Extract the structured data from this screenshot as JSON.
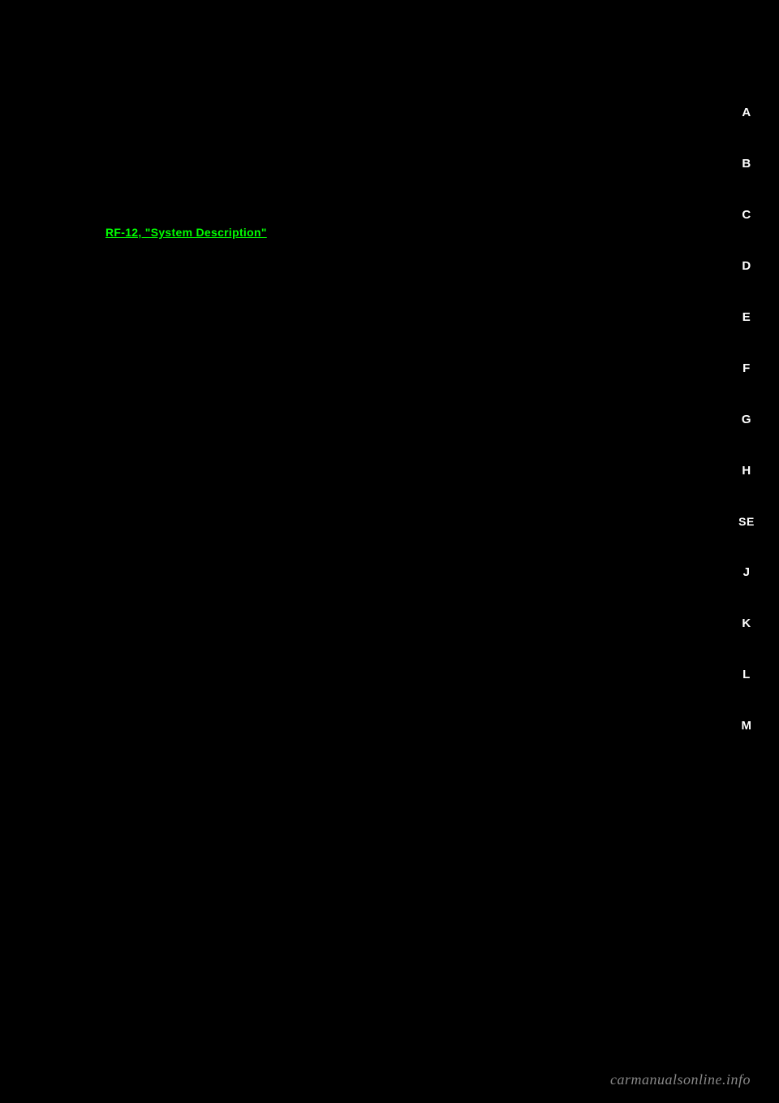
{
  "content": {
    "link_text": "RF-12, \"System Description\""
  },
  "nav": {
    "items": [
      {
        "label": "A"
      },
      {
        "label": "B"
      },
      {
        "label": "C"
      },
      {
        "label": "D"
      },
      {
        "label": "E"
      },
      {
        "label": "F"
      },
      {
        "label": "G"
      },
      {
        "label": "H"
      },
      {
        "label": "SE"
      },
      {
        "label": "J"
      },
      {
        "label": "K"
      },
      {
        "label": "L"
      },
      {
        "label": "M"
      }
    ]
  },
  "footer": {
    "watermark": "carmanualsonline.info"
  },
  "colors": {
    "background": "#000000",
    "text": "#ffffff",
    "link": "#00ff00",
    "watermark": "#888888"
  }
}
